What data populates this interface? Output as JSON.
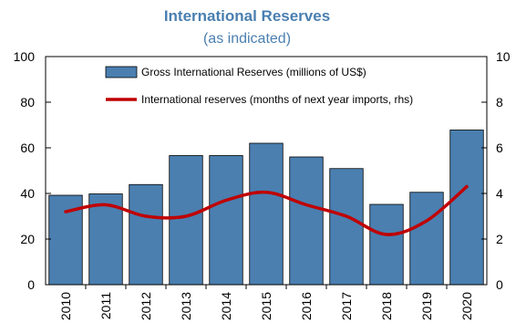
{
  "chart_data": {
    "type": "bar",
    "title": "International Reserves",
    "subtitle": "(as indicated)",
    "categories": [
      "2010",
      "2011",
      "2012",
      "2013",
      "2014",
      "2015",
      "2016",
      "2017",
      "2018",
      "2019",
      "2020"
    ],
    "series": [
      {
        "name": "Gross International Reserves (millions of US$)",
        "type": "bar",
        "axis": "left",
        "color": "#4a7fb0",
        "values": [
          39.2,
          39.8,
          43.9,
          56.6,
          56.6,
          62.0,
          56.0,
          50.9,
          35.2,
          40.5,
          67.8
        ]
      },
      {
        "name": "International reserves (months of next year imports, rhs)",
        "type": "line",
        "axis": "right",
        "color": "#c00000",
        "values": [
          3.2,
          3.5,
          3.0,
          3.0,
          3.7,
          4.05,
          3.5,
          3.0,
          2.2,
          2.8,
          4.3
        ]
      }
    ],
    "ylim": [
      0,
      100
    ],
    "y2lim": [
      0,
      10
    ],
    "yticks": [
      0,
      20,
      40,
      60,
      80,
      100
    ],
    "y2ticks": [
      0,
      2,
      4,
      6,
      8,
      10
    ],
    "grid": false,
    "legend": "top-center",
    "title_color": "#4a7fb0",
    "axis_color": "#000000"
  }
}
